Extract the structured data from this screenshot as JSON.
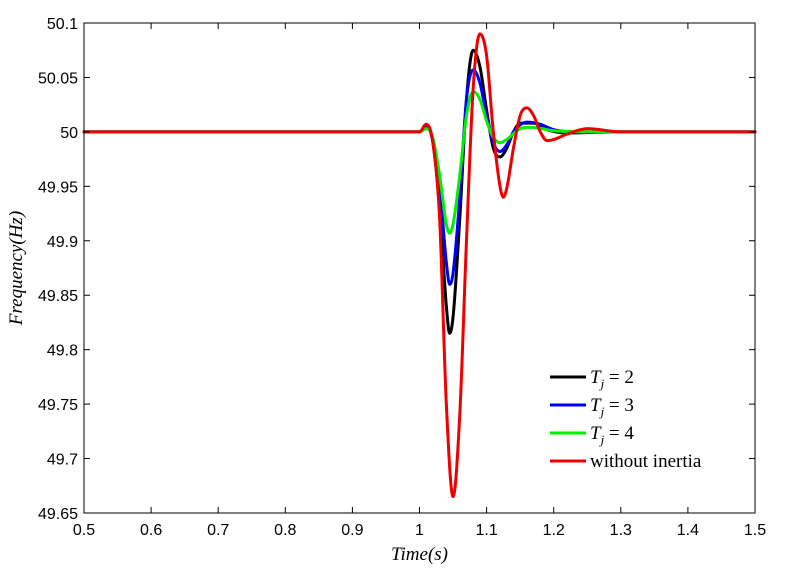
{
  "chart_data": {
    "type": "line",
    "title": "",
    "xlabel": "Time(s)",
    "ylabel": "Frequency(Hz)",
    "xlim": [
      0.5,
      1.5
    ],
    "ylim": [
      49.65,
      50.1
    ],
    "xticks": [
      0.5,
      0.6,
      0.7,
      0.8,
      0.9,
      1.0,
      1.1,
      1.2,
      1.3,
      1.4,
      1.5
    ],
    "xtick_labels": [
      "0.5",
      "0.6",
      "0.7",
      "0.8",
      "0.9",
      "1",
      "1.1",
      "1.2",
      "1.3",
      "1.4",
      "1.5"
    ],
    "yticks": [
      49.65,
      49.7,
      49.75,
      49.8,
      49.85,
      49.9,
      49.95,
      50.0,
      50.05,
      50.1
    ],
    "ytick_labels": [
      "49.65",
      "49.7",
      "49.75",
      "49.8",
      "49.85",
      "49.9",
      "49.95",
      "50",
      "50.05",
      "50.1"
    ],
    "grid": false,
    "legend_position": "bottom-right",
    "series": [
      {
        "name": "Tj = 2",
        "legend_parts": [
          "T",
          "j",
          " = 2"
        ],
        "color": "#000000",
        "points": [
          [
            0.5,
            50.0
          ],
          [
            1.0,
            50.0
          ],
          [
            1.01,
            50.005
          ],
          [
            1.02,
            49.99
          ],
          [
            1.03,
            49.93
          ],
          [
            1.04,
            49.84
          ],
          [
            1.045,
            49.815
          ],
          [
            1.05,
            49.83
          ],
          [
            1.06,
            49.92
          ],
          [
            1.07,
            50.03
          ],
          [
            1.08,
            50.075
          ],
          [
            1.09,
            50.06
          ],
          [
            1.1,
            50.02
          ],
          [
            1.11,
            49.985
          ],
          [
            1.12,
            49.977
          ],
          [
            1.13,
            49.985
          ],
          [
            1.14,
            50.0
          ],
          [
            1.15,
            50.008
          ],
          [
            1.17,
            50.008
          ],
          [
            1.19,
            50.002
          ],
          [
            1.22,
            49.999
          ],
          [
            1.3,
            50.0
          ],
          [
            1.5,
            50.0
          ]
        ]
      },
      {
        "name": "Tj = 3",
        "legend_parts": [
          "T",
          "j",
          " = 3"
        ],
        "color": "#0000ff",
        "points": [
          [
            0.5,
            50.0
          ],
          [
            1.0,
            50.0
          ],
          [
            1.01,
            50.004
          ],
          [
            1.02,
            49.992
          ],
          [
            1.03,
            49.95
          ],
          [
            1.04,
            49.88
          ],
          [
            1.045,
            49.86
          ],
          [
            1.05,
            49.87
          ],
          [
            1.06,
            49.94
          ],
          [
            1.07,
            50.03
          ],
          [
            1.08,
            50.057
          ],
          [
            1.09,
            50.045
          ],
          [
            1.1,
            50.015
          ],
          [
            1.11,
            49.99
          ],
          [
            1.12,
            49.982
          ],
          [
            1.13,
            49.988
          ],
          [
            1.14,
            50.0
          ],
          [
            1.16,
            50.009
          ],
          [
            1.18,
            50.007
          ],
          [
            1.2,
            50.002
          ],
          [
            1.25,
            50.0
          ],
          [
            1.5,
            50.0
          ]
        ]
      },
      {
        "name": "Tj = 4",
        "legend_parts": [
          "T",
          "j",
          " = 4"
        ],
        "color": "#00ee00",
        "points": [
          [
            0.5,
            50.0
          ],
          [
            1.0,
            50.0
          ],
          [
            1.01,
            50.003
          ],
          [
            1.02,
            49.994
          ],
          [
            1.03,
            49.96
          ],
          [
            1.04,
            49.915
          ],
          [
            1.045,
            49.907
          ],
          [
            1.05,
            49.915
          ],
          [
            1.06,
            49.96
          ],
          [
            1.07,
            50.015
          ],
          [
            1.08,
            50.037
          ],
          [
            1.09,
            50.03
          ],
          [
            1.1,
            50.01
          ],
          [
            1.11,
            49.995
          ],
          [
            1.12,
            49.99
          ],
          [
            1.13,
            49.993
          ],
          [
            1.15,
            50.003
          ],
          [
            1.17,
            50.004
          ],
          [
            1.2,
            50.001
          ],
          [
            1.25,
            50.0
          ],
          [
            1.5,
            50.0
          ]
        ]
      },
      {
        "name": "without inertia",
        "legend_parts": [
          "without inertia",
          "",
          ""
        ],
        "color": "#ee0000",
        "points": [
          [
            0.5,
            50.0
          ],
          [
            1.0,
            50.0
          ],
          [
            1.01,
            50.007
          ],
          [
            1.02,
            49.99
          ],
          [
            1.03,
            49.92
          ],
          [
            1.04,
            49.75
          ],
          [
            1.05,
            49.665
          ],
          [
            1.06,
            49.74
          ],
          [
            1.07,
            49.9
          ],
          [
            1.08,
            50.04
          ],
          [
            1.09,
            50.09
          ],
          [
            1.1,
            50.07
          ],
          [
            1.11,
            50.0
          ],
          [
            1.12,
            49.95
          ],
          [
            1.125,
            49.94
          ],
          [
            1.13,
            49.948
          ],
          [
            1.14,
            49.985
          ],
          [
            1.15,
            50.015
          ],
          [
            1.16,
            50.022
          ],
          [
            1.17,
            50.015
          ],
          [
            1.18,
            50.0
          ],
          [
            1.19,
            49.992
          ],
          [
            1.2,
            49.993
          ],
          [
            1.22,
            49.998
          ],
          [
            1.25,
            50.003
          ],
          [
            1.3,
            50.0
          ],
          [
            1.5,
            50.0
          ]
        ]
      }
    ]
  }
}
